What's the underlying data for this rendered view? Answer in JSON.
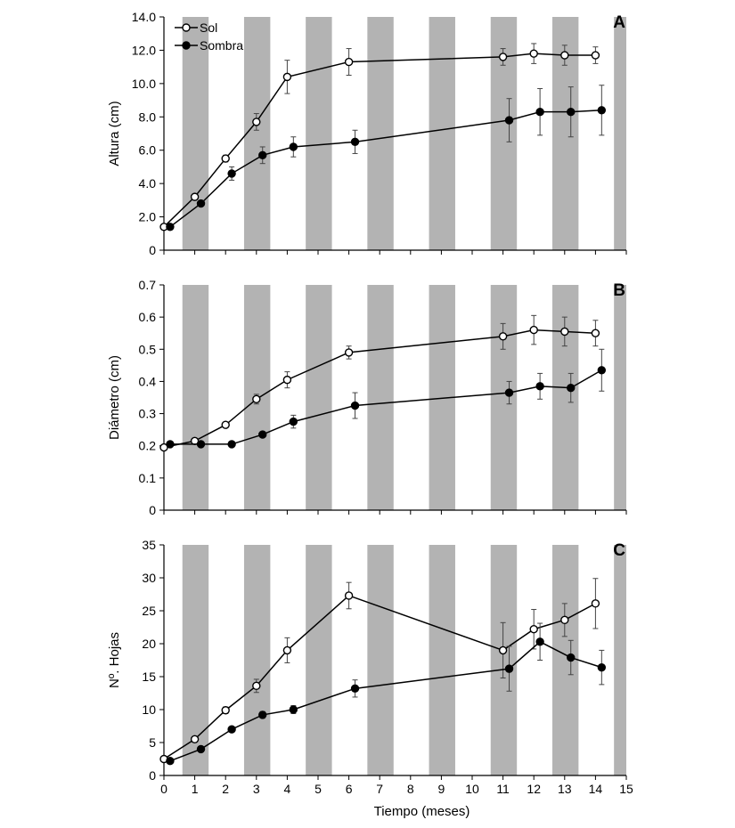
{
  "chart_data": [
    {
      "type": "line",
      "panel_label": "A",
      "ylabel": "Altura (cm)",
      "xlabel": "",
      "xlim": [
        0,
        15
      ],
      "ylim": [
        0,
        14
      ],
      "yticks": [
        0,
        2,
        4,
        6,
        8,
        10,
        12,
        14
      ],
      "ytick_labels": [
        "0",
        "2.0",
        "4.0",
        "6.0",
        "8.0",
        "10.0",
        "12.0",
        "14.0"
      ],
      "shaded_bands": [
        [
          0.6,
          1.45
        ],
        [
          2.6,
          3.45
        ],
        [
          4.6,
          5.45
        ],
        [
          6.6,
          7.45
        ],
        [
          8.6,
          9.45
        ],
        [
          10.6,
          11.45
        ],
        [
          12.6,
          13.45
        ],
        [
          14.6,
          15
        ]
      ],
      "legend": [
        "Sol",
        "Sombra"
      ],
      "legend_position": "top-left",
      "series": [
        {
          "name": "Sol",
          "marker": "open",
          "x": [
            0,
            1,
            2,
            3,
            4,
            6,
            11,
            12,
            13,
            14
          ],
          "y": [
            1.4,
            3.2,
            5.5,
            7.7,
            10.4,
            11.3,
            11.6,
            11.8,
            11.7,
            11.7
          ],
          "err": [
            0,
            0.15,
            0.2,
            0.5,
            1.0,
            0.8,
            0.5,
            0.6,
            0.6,
            0.5
          ]
        },
        {
          "name": "Sombra",
          "marker": "filled",
          "x": [
            0.2,
            1.2,
            2.2,
            3.2,
            4.2,
            6.2,
            11.2,
            12.2,
            13.2,
            14.2
          ],
          "y": [
            1.4,
            2.8,
            4.6,
            5.7,
            6.2,
            6.5,
            7.8,
            8.3,
            8.3,
            8.4
          ],
          "err": [
            0,
            0.15,
            0.4,
            0.5,
            0.6,
            0.7,
            1.3,
            1.4,
            1.5,
            1.5
          ]
        }
      ]
    },
    {
      "type": "line",
      "panel_label": "B",
      "ylabel": "Diámetro (cm)",
      "xlabel": "",
      "xlim": [
        0,
        15
      ],
      "ylim": [
        0,
        0.7
      ],
      "yticks": [
        0,
        0.1,
        0.2,
        0.3,
        0.4,
        0.5,
        0.6,
        0.7
      ],
      "ytick_labels": [
        "0",
        "0.1",
        "0.2",
        "0.3",
        "0.4",
        "0.5",
        "0.6",
        "0.7"
      ],
      "shaded_bands": [
        [
          0.6,
          1.45
        ],
        [
          2.6,
          3.45
        ],
        [
          4.6,
          5.45
        ],
        [
          6.6,
          7.45
        ],
        [
          8.6,
          9.45
        ],
        [
          10.6,
          11.45
        ],
        [
          12.6,
          13.45
        ],
        [
          14.6,
          15
        ]
      ],
      "series": [
        {
          "name": "Sol",
          "marker": "open",
          "x": [
            0,
            1,
            2,
            3,
            4,
            6,
            11,
            12,
            13,
            14
          ],
          "y": [
            0.195,
            0.215,
            0.265,
            0.345,
            0.405,
            0.49,
            0.54,
            0.56,
            0.555,
            0.55
          ],
          "err": [
            0,
            0.005,
            0.008,
            0.015,
            0.025,
            0.02,
            0.04,
            0.045,
            0.045,
            0.04
          ]
        },
        {
          "name": "Sombra",
          "marker": "filled",
          "x": [
            0.2,
            1.2,
            2.2,
            3.2,
            4.2,
            6.2,
            11.2,
            12.2,
            13.2,
            14.2
          ],
          "y": [
            0.205,
            0.205,
            0.205,
            0.235,
            0.275,
            0.325,
            0.365,
            0.385,
            0.38,
            0.435
          ],
          "err": [
            0,
            0,
            0,
            0.005,
            0.02,
            0.04,
            0.035,
            0.04,
            0.045,
            0.065
          ]
        }
      ]
    },
    {
      "type": "line",
      "panel_label": "C",
      "ylabel": "Nº. Hojas",
      "xlabel": "Tiempo (meses)",
      "xlim": [
        0,
        15
      ],
      "ylim": [
        0,
        35
      ],
      "xticks": [
        0,
        1,
        2,
        3,
        4,
        5,
        6,
        7,
        8,
        9,
        10,
        11,
        12,
        13,
        14,
        15
      ],
      "yticks": [
        0,
        5,
        10,
        15,
        20,
        25,
        30,
        35
      ],
      "ytick_labels": [
        "0",
        "5",
        "10",
        "15",
        "20",
        "25",
        "30",
        "35"
      ],
      "shaded_bands": [
        [
          0.6,
          1.45
        ],
        [
          2.6,
          3.45
        ],
        [
          4.6,
          5.45
        ],
        [
          6.6,
          7.45
        ],
        [
          8.6,
          9.45
        ],
        [
          10.6,
          11.45
        ],
        [
          12.6,
          13.45
        ],
        [
          14.6,
          15
        ]
      ],
      "series": [
        {
          "name": "Sol",
          "marker": "open",
          "x": [
            0,
            1,
            2,
            3,
            4,
            6,
            11,
            12,
            13,
            14
          ],
          "y": [
            2.5,
            5.5,
            9.9,
            13.6,
            19.0,
            27.3,
            19.0,
            22.2,
            23.6,
            26.1
          ],
          "err": [
            0,
            0.2,
            0.5,
            1.0,
            1.9,
            2.0,
            4.2,
            3.0,
            2.5,
            3.8
          ]
        },
        {
          "name": "Sombra",
          "marker": "filled",
          "x": [
            0.2,
            1.2,
            2.2,
            3.2,
            4.2,
            6.2,
            11.2,
            12.2,
            13.2,
            14.2
          ],
          "y": [
            2.2,
            4.0,
            7.0,
            9.2,
            10.0,
            13.2,
            16.2,
            20.3,
            17.9,
            16.4
          ],
          "err": [
            0,
            0,
            0,
            0.5,
            0.6,
            1.3,
            3.4,
            2.8,
            2.6,
            2.6
          ]
        }
      ]
    }
  ]
}
